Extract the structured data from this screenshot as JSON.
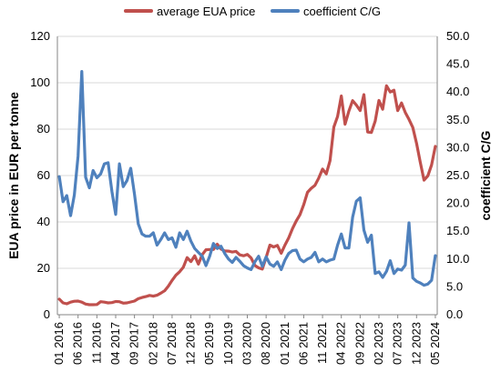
{
  "chart_data": {
    "type": "line",
    "title": "",
    "y_left_label": "EUA price in EUR per tonne",
    "y_right_label": "coefficient C/G",
    "y_left_lim": [
      0,
      120
    ],
    "y_right_lim": [
      0,
      50
    ],
    "y_left_ticks": [
      "0",
      "20",
      "40",
      "60",
      "80",
      "100",
      "120"
    ],
    "y_right_ticks": [
      "0.0",
      "5.0",
      "10.0",
      "15.0",
      "20.0",
      "25.0",
      "30.0",
      "35.0",
      "40.0",
      "45.0",
      "50.0"
    ],
    "x_tick_labels": [
      "01 2016",
      "06 2016",
      "11 2016",
      "04 2017",
      "09 2017",
      "02 2018",
      "07 2018",
      "12 2018",
      "05 2019",
      "10 2019",
      "03 2020",
      "08 2020",
      "01 2021",
      "06 2021",
      "11 2021",
      "04 2022",
      "09 2022",
      "02 2023",
      "07 2023",
      "12 2023",
      "05 2024"
    ],
    "grid": true,
    "legend_position": "top",
    "series": [
      {
        "name": "average EUA price",
        "axis": "left",
        "color": "#c0504d",
        "values": [
          6.7,
          5.1,
          4.7,
          5.4,
          5.8,
          5.9,
          5.4,
          4.6,
          4.3,
          4.3,
          4.4,
          5.6,
          5.4,
          5.1,
          5.2,
          5.7,
          5.6,
          5.0,
          5.1,
          5.5,
          5.9,
          6.9,
          7.4,
          7.8,
          8.3,
          8.0,
          8.4,
          9.3,
          10.3,
          12.3,
          14.8,
          17.0,
          18.5,
          20.5,
          24.6,
          22.9,
          25.4,
          21.8,
          25.9,
          28.0,
          28.1,
          28.1,
          30.4,
          28.3,
          27.5,
          27.4,
          27.0,
          27.3,
          25.8,
          25.4,
          26.0,
          24.5,
          21.2,
          20.2,
          19.7,
          24.6,
          30.0,
          29.2,
          29.9,
          26.5,
          30.0,
          33.1,
          37.0,
          40.4,
          43.1,
          47.4,
          52.8,
          54.5,
          55.8,
          58.9,
          62.8,
          60.7,
          66.4,
          80.9,
          85.5,
          94.3,
          82.1,
          87.8,
          92.3,
          90.4,
          88.0,
          94.9,
          78.8,
          78.6,
          83.5,
          92.4,
          88.6,
          98.7,
          96.0,
          96.8,
          88.0,
          91.3,
          87.2,
          84.2,
          80.7,
          73.9,
          65.7,
          58.0,
          59.9,
          64.6,
          72.6
        ]
      },
      {
        "name": "coefficient C/G",
        "axis": "right",
        "color": "#4f81bd",
        "values": [
          24.8,
          20.3,
          21.4,
          17.8,
          21.5,
          28.5,
          43.7,
          24.7,
          22.8,
          25.9,
          24.6,
          25.3,
          27.1,
          27.3,
          22.1,
          18.0,
          27.1,
          23.0,
          24.1,
          26.3,
          21.7,
          16.3,
          14.5,
          14.1,
          14.1,
          14.7,
          12.5,
          13.5,
          14.7,
          13.5,
          13.8,
          12.1,
          14.7,
          13.5,
          15.0,
          13.2,
          11.9,
          11.2,
          10.5,
          8.8,
          10.5,
          12.8,
          11.9,
          12.3,
          11.0,
          10.0,
          9.4,
          10.3,
          9.6,
          8.8,
          8.4,
          8.1,
          9.5,
          10.5,
          8.7,
          10.4,
          9.1,
          8.7,
          9.5,
          8.1,
          9.8,
          11.0,
          11.5,
          11.6,
          10.0,
          9.5,
          10.0,
          10.3,
          11.2,
          9.5,
          10.0,
          9.5,
          9.8,
          10.0,
          12.5,
          14.5,
          12.0,
          12.0,
          17.5,
          20.4,
          21.0,
          15.2,
          13.0,
          14.3,
          7.4,
          7.7,
          6.7,
          7.8,
          9.7,
          7.4,
          8.2,
          8.0,
          8.9,
          16.5,
          6.6,
          6.0,
          5.7,
          5.3,
          5.5,
          6.2,
          10.6
        ]
      }
    ]
  },
  "colors": {
    "grid": "#d9d9d9",
    "axis": "#868686"
  }
}
